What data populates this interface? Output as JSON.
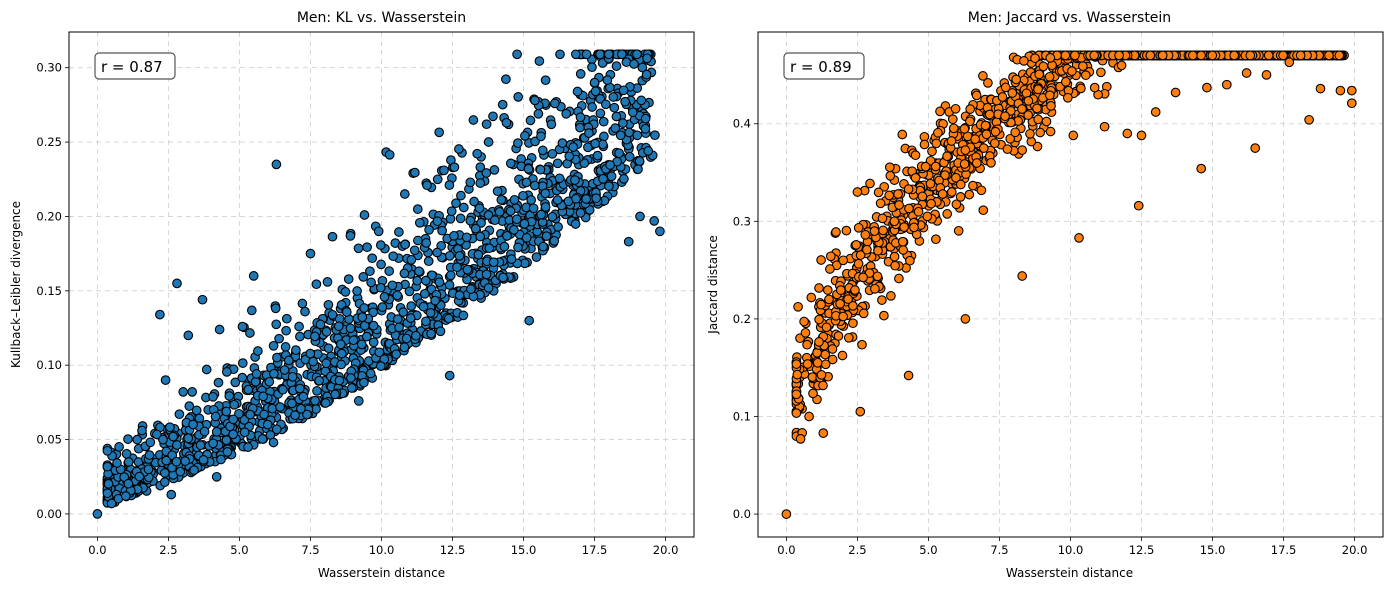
{
  "chart_data": [
    {
      "type": "scatter",
      "title": "Men: KL vs. Wasserstein",
      "xlabel": "Wasserstein distance",
      "ylabel": "Kullback–Leibler divergence",
      "xlim": [
        -1.0,
        21.0
      ],
      "ylim": [
        -0.0155,
        0.324
      ],
      "xticks": [
        0.0,
        2.5,
        5.0,
        7.5,
        10.0,
        12.5,
        15.0,
        17.5,
        20.0
      ],
      "xtick_labels": [
        "0.0",
        "2.5",
        "5.0",
        "7.5",
        "10.0",
        "12.5",
        "15.0",
        "17.5",
        "20.0"
      ],
      "yticks": [
        0.0,
        0.05,
        0.1,
        0.15,
        0.2,
        0.25,
        0.3
      ],
      "ytick_labels": [
        "0.00",
        "0.05",
        "0.10",
        "0.15",
        "0.20",
        "0.25",
        "0.30"
      ],
      "grid": true,
      "annotation": "r = 0.87",
      "color": "#1f77b4",
      "edge_color": "#000000",
      "generator": {
        "n": 1500,
        "seed": 11,
        "a": 0.006,
        "b": 0.0052,
        "noise": 0.032,
        "ymax": 0.309
      },
      "points": [
        [
          0.0,
          0.0
        ],
        [
          0.5,
          0.007
        ],
        [
          1.0,
          0.012
        ],
        [
          1.4,
          0.05
        ],
        [
          1.8,
          0.03
        ],
        [
          2.2,
          0.134
        ],
        [
          2.4,
          0.09
        ],
        [
          2.8,
          0.155
        ],
        [
          3.2,
          0.12
        ],
        [
          3.7,
          0.144
        ],
        [
          4.3,
          0.124
        ],
        [
          5.5,
          0.16
        ],
        [
          6.3,
          0.235
        ],
        [
          7.1,
          0.126
        ],
        [
          7.5,
          0.175
        ],
        [
          8.1,
          0.156
        ],
        [
          9.4,
          0.201
        ],
        [
          9.9,
          0.19
        ],
        [
          11.6,
          0.221
        ],
        [
          12.2,
          0.231
        ],
        [
          13.0,
          0.186
        ],
        [
          13.7,
          0.262
        ],
        [
          14.4,
          0.263
        ],
        [
          15.4,
          0.278
        ],
        [
          16.1,
          0.276
        ],
        [
          16.5,
          0.269
        ],
        [
          16.9,
          0.284
        ],
        [
          17.3,
          0.256
        ],
        [
          17.5,
          0.29
        ],
        [
          18.0,
          0.309
        ],
        [
          18.1,
          0.227
        ],
        [
          18.7,
          0.183
        ],
        [
          19.1,
          0.2
        ],
        [
          19.6,
          0.197
        ],
        [
          19.8,
          0.19
        ],
        [
          15.2,
          0.13
        ],
        [
          12.4,
          0.093
        ],
        [
          9.2,
          0.076
        ],
        [
          6.2,
          0.048
        ],
        [
          4.2,
          0.025
        ],
        [
          2.6,
          0.013
        ]
      ]
    },
    {
      "type": "scatter",
      "title": "Men: Jaccard vs. Wasserstein",
      "xlabel": "Wasserstein distance",
      "ylabel": "Jaccard distance",
      "xlim": [
        -1.0,
        21.0
      ],
      "ylim": [
        -0.0235,
        0.494
      ],
      "xticks": [
        0.0,
        2.5,
        5.0,
        7.5,
        10.0,
        12.5,
        15.0,
        17.5,
        20.0
      ],
      "xtick_labels": [
        "0.0",
        "2.5",
        "5.0",
        "7.5",
        "10.0",
        "12.5",
        "15.0",
        "17.5",
        "20.0"
      ],
      "yticks": [
        0.0,
        0.1,
        0.2,
        0.3,
        0.4
      ],
      "ytick_labels": [
        "0.0",
        "0.1",
        "0.2",
        "0.3",
        "0.4"
      ],
      "grid": true,
      "annotation": "r = 0.89",
      "color": "#ff7f0e",
      "edge_color": "#000000",
      "generator": {
        "n": 1500,
        "seed": 23,
        "base": 0.07,
        "coef": 0.1,
        "exp": 0.6,
        "noise": 0.06,
        "ymax": 0.47
      },
      "points": [
        [
          0.0,
          0.0
        ],
        [
          0.5,
          0.077
        ],
        [
          0.8,
          0.1
        ],
        [
          1.1,
          0.155
        ],
        [
          1.5,
          0.22
        ],
        [
          2.0,
          0.26
        ],
        [
          2.5,
          0.33
        ],
        [
          3.1,
          0.29
        ],
        [
          3.8,
          0.3
        ],
        [
          4.3,
          0.333
        ],
        [
          4.9,
          0.356
        ],
        [
          5.5,
          0.328
        ],
        [
          6.3,
          0.373
        ],
        [
          7.2,
          0.36
        ],
        [
          8.3,
          0.373
        ],
        [
          9.3,
          0.392
        ],
        [
          10.1,
          0.388
        ],
        [
          11.2,
          0.397
        ],
        [
          12.0,
          0.39
        ],
        [
          12.5,
          0.388
        ],
        [
          13.0,
          0.412
        ],
        [
          13.7,
          0.432
        ],
        [
          14.8,
          0.437
        ],
        [
          15.5,
          0.44
        ],
        [
          16.2,
          0.452
        ],
        [
          16.9,
          0.45
        ],
        [
          17.7,
          0.463
        ],
        [
          18.1,
          0.47
        ],
        [
          18.8,
          0.436
        ],
        [
          19.5,
          0.434
        ],
        [
          19.9,
          0.434
        ],
        [
          19.9,
          0.421
        ],
        [
          18.4,
          0.404
        ],
        [
          16.5,
          0.375
        ],
        [
          14.6,
          0.354
        ],
        [
          12.4,
          0.316
        ],
        [
          10.3,
          0.283
        ],
        [
          8.3,
          0.244
        ],
        [
          6.3,
          0.2
        ],
        [
          4.3,
          0.142
        ],
        [
          2.6,
          0.105
        ],
        [
          1.3,
          0.083
        ]
      ]
    }
  ]
}
